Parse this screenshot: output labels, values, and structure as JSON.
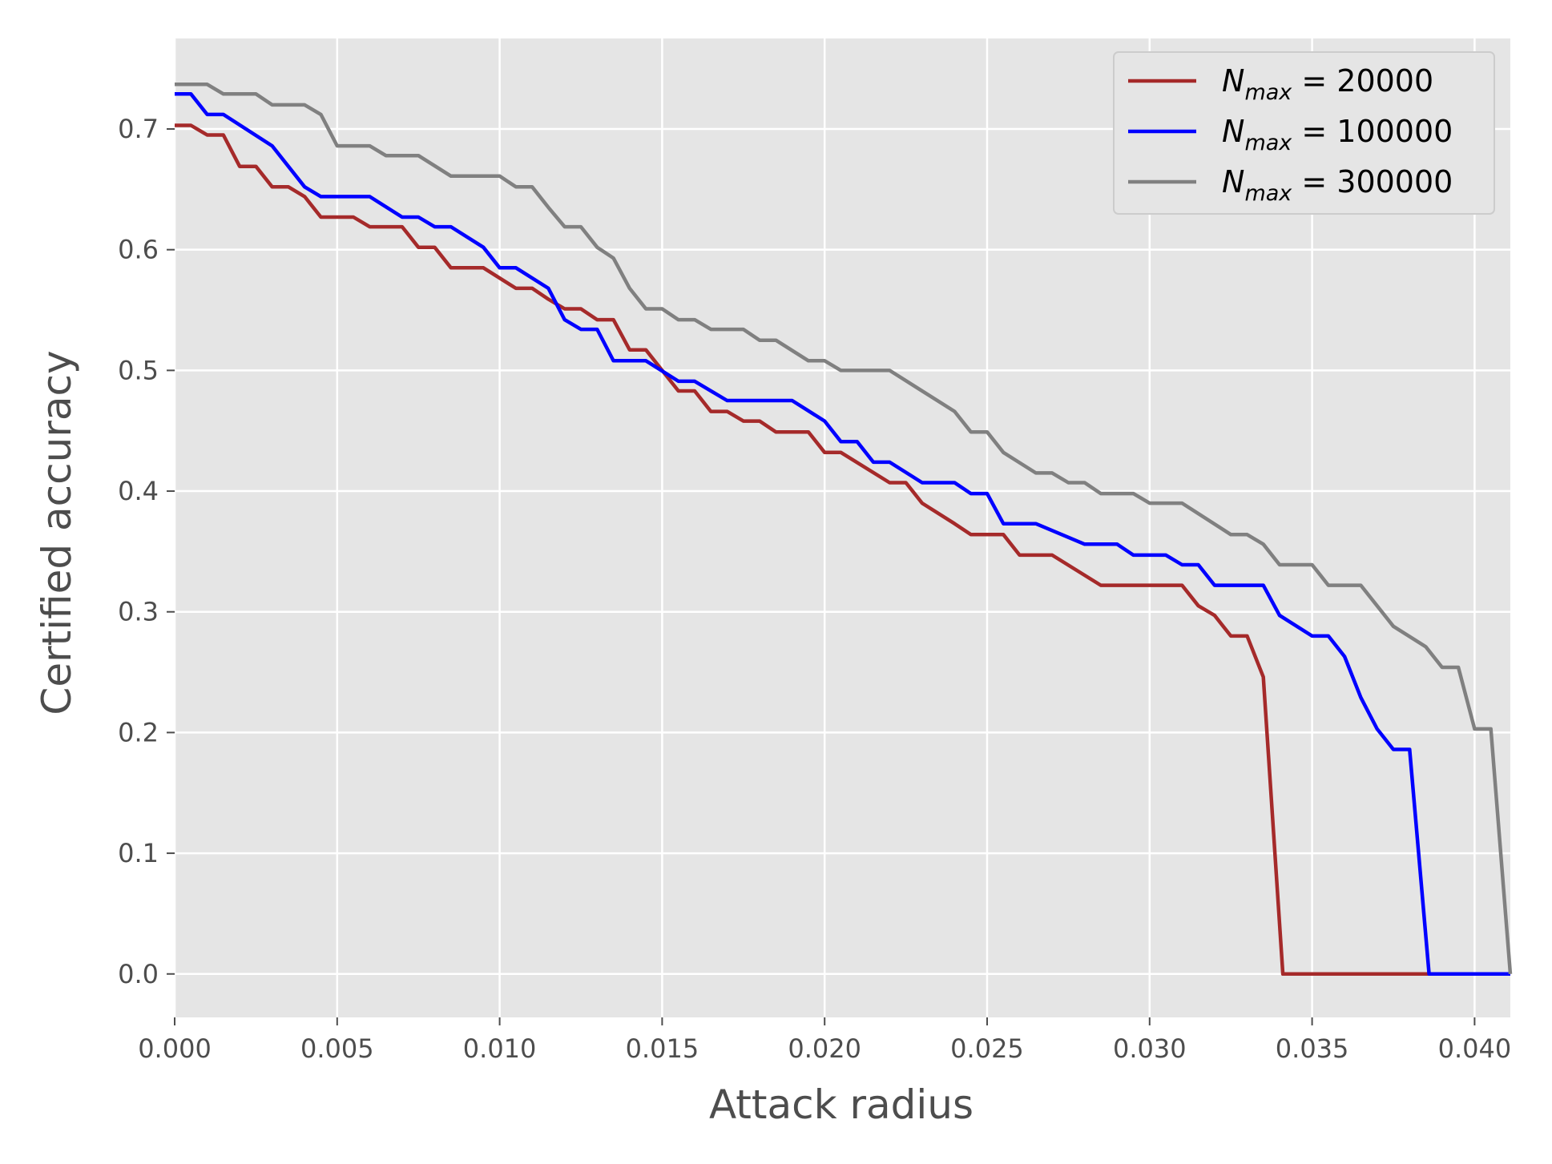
{
  "chart_data": {
    "type": "line",
    "xlabel": "Attack radius",
    "ylabel": "Certified accuracy",
    "xlim": [
      0.0,
      0.0411
    ],
    "ylim": [
      -0.036,
      0.775
    ],
    "grid": true,
    "legend_position": "top-right",
    "x_ticks": [
      "0.000",
      "0.005",
      "0.010",
      "0.015",
      "0.020",
      "0.025",
      "0.030",
      "0.035",
      "0.040"
    ],
    "y_ticks": [
      "0.0",
      "0.1",
      "0.2",
      "0.3",
      "0.4",
      "0.5",
      "0.6",
      "0.7"
    ],
    "colors": {
      "background": "#e5e5e5",
      "grid": "#ffffff",
      "tick_text": "#4d4d4d"
    },
    "series": [
      {
        "label_main": "N",
        "label_sub": "max",
        "label_value": " = 20000",
        "color": "#a52a2a",
        "points": [
          [
            0.0,
            0.703
          ],
          [
            0.0005,
            0.703
          ],
          [
            0.001,
            0.695
          ],
          [
            0.0015,
            0.695
          ],
          [
            0.002,
            0.669
          ],
          [
            0.0025,
            0.669
          ],
          [
            0.003,
            0.652
          ],
          [
            0.0035,
            0.652
          ],
          [
            0.004,
            0.644
          ],
          [
            0.0045,
            0.627
          ],
          [
            0.0055,
            0.627
          ],
          [
            0.006,
            0.619
          ],
          [
            0.007,
            0.619
          ],
          [
            0.0075,
            0.602
          ],
          [
            0.008,
            0.602
          ],
          [
            0.0085,
            0.585
          ],
          [
            0.0095,
            0.585
          ],
          [
            0.0105,
            0.568
          ],
          [
            0.011,
            0.568
          ],
          [
            0.0115,
            0.559
          ],
          [
            0.012,
            0.551
          ],
          [
            0.0125,
            0.551
          ],
          [
            0.013,
            0.542
          ],
          [
            0.0135,
            0.542
          ],
          [
            0.014,
            0.517
          ],
          [
            0.0145,
            0.517
          ],
          [
            0.0155,
            0.483
          ],
          [
            0.016,
            0.483
          ],
          [
            0.0165,
            0.466
          ],
          [
            0.017,
            0.466
          ],
          [
            0.0175,
            0.458
          ],
          [
            0.018,
            0.458
          ],
          [
            0.0185,
            0.449
          ],
          [
            0.0195,
            0.449
          ],
          [
            0.02,
            0.432
          ],
          [
            0.0205,
            0.432
          ],
          [
            0.022,
            0.407
          ],
          [
            0.0225,
            0.407
          ],
          [
            0.023,
            0.39
          ],
          [
            0.024,
            0.373
          ],
          [
            0.0245,
            0.364
          ],
          [
            0.0255,
            0.364
          ],
          [
            0.026,
            0.347
          ],
          [
            0.027,
            0.347
          ],
          [
            0.0285,
            0.322
          ],
          [
            0.031,
            0.322
          ],
          [
            0.0315,
            0.305
          ],
          [
            0.032,
            0.297
          ],
          [
            0.0325,
            0.28
          ],
          [
            0.033,
            0.28
          ],
          [
            0.0335,
            0.246
          ],
          [
            0.0341,
            0.0
          ],
          [
            0.0411,
            0.0
          ]
        ]
      },
      {
        "label_main": "N",
        "label_sub": "max",
        "label_value": " = 100000",
        "color": "#0000ff",
        "points": [
          [
            0.0,
            0.729
          ],
          [
            0.0005,
            0.729
          ],
          [
            0.001,
            0.712
          ],
          [
            0.0015,
            0.712
          ],
          [
            0.003,
            0.686
          ],
          [
            0.004,
            0.652
          ],
          [
            0.0045,
            0.644
          ],
          [
            0.006,
            0.644
          ],
          [
            0.007,
            0.627
          ],
          [
            0.0075,
            0.627
          ],
          [
            0.008,
            0.619
          ],
          [
            0.0085,
            0.619
          ],
          [
            0.0095,
            0.602
          ],
          [
            0.01,
            0.585
          ],
          [
            0.0105,
            0.585
          ],
          [
            0.0115,
            0.568
          ],
          [
            0.012,
            0.542
          ],
          [
            0.0125,
            0.534
          ],
          [
            0.013,
            0.534
          ],
          [
            0.0135,
            0.508
          ],
          [
            0.0145,
            0.508
          ],
          [
            0.0155,
            0.491
          ],
          [
            0.016,
            0.491
          ],
          [
            0.017,
            0.475
          ],
          [
            0.019,
            0.475
          ],
          [
            0.02,
            0.458
          ],
          [
            0.0205,
            0.441
          ],
          [
            0.021,
            0.441
          ],
          [
            0.0215,
            0.424
          ],
          [
            0.022,
            0.424
          ],
          [
            0.023,
            0.407
          ],
          [
            0.024,
            0.407
          ],
          [
            0.0245,
            0.398
          ],
          [
            0.025,
            0.398
          ],
          [
            0.0255,
            0.373
          ],
          [
            0.0265,
            0.373
          ],
          [
            0.028,
            0.356
          ],
          [
            0.029,
            0.356
          ],
          [
            0.0295,
            0.347
          ],
          [
            0.0305,
            0.347
          ],
          [
            0.031,
            0.339
          ],
          [
            0.0315,
            0.339
          ],
          [
            0.032,
            0.322
          ],
          [
            0.0335,
            0.322
          ],
          [
            0.034,
            0.297
          ],
          [
            0.035,
            0.28
          ],
          [
            0.0355,
            0.28
          ],
          [
            0.036,
            0.263
          ],
          [
            0.0365,
            0.229
          ],
          [
            0.037,
            0.203
          ],
          [
            0.0375,
            0.186
          ],
          [
            0.038,
            0.186
          ],
          [
            0.0386,
            0.0
          ],
          [
            0.0411,
            0.0
          ]
        ]
      },
      {
        "label_main": "N",
        "label_sub": "max",
        "label_value": " = 300000",
        "color": "#808080",
        "points": [
          [
            0.0,
            0.737
          ],
          [
            0.001,
            0.737
          ],
          [
            0.0015,
            0.729
          ],
          [
            0.0025,
            0.729
          ],
          [
            0.003,
            0.72
          ],
          [
            0.004,
            0.72
          ],
          [
            0.0045,
            0.712
          ],
          [
            0.005,
            0.686
          ],
          [
            0.006,
            0.686
          ],
          [
            0.0065,
            0.678
          ],
          [
            0.0075,
            0.678
          ],
          [
            0.0085,
            0.661
          ],
          [
            0.01,
            0.661
          ],
          [
            0.0105,
            0.652
          ],
          [
            0.011,
            0.652
          ],
          [
            0.0115,
            0.635
          ],
          [
            0.012,
            0.619
          ],
          [
            0.0125,
            0.619
          ],
          [
            0.013,
            0.602
          ],
          [
            0.0135,
            0.593
          ],
          [
            0.014,
            0.568
          ],
          [
            0.0145,
            0.551
          ],
          [
            0.015,
            0.551
          ],
          [
            0.0155,
            0.542
          ],
          [
            0.016,
            0.542
          ],
          [
            0.0165,
            0.534
          ],
          [
            0.0175,
            0.534
          ],
          [
            0.018,
            0.525
          ],
          [
            0.0185,
            0.525
          ],
          [
            0.0195,
            0.508
          ],
          [
            0.02,
            0.508
          ],
          [
            0.0205,
            0.5
          ],
          [
            0.022,
            0.5
          ],
          [
            0.024,
            0.466
          ],
          [
            0.0245,
            0.449
          ],
          [
            0.025,
            0.449
          ],
          [
            0.0255,
            0.432
          ],
          [
            0.0265,
            0.415
          ],
          [
            0.027,
            0.415
          ],
          [
            0.0275,
            0.407
          ],
          [
            0.028,
            0.407
          ],
          [
            0.0285,
            0.398
          ],
          [
            0.0295,
            0.398
          ],
          [
            0.03,
            0.39
          ],
          [
            0.031,
            0.39
          ],
          [
            0.0325,
            0.364
          ],
          [
            0.033,
            0.364
          ],
          [
            0.0335,
            0.356
          ],
          [
            0.034,
            0.339
          ],
          [
            0.035,
            0.339
          ],
          [
            0.0355,
            0.322
          ],
          [
            0.0365,
            0.322
          ],
          [
            0.0375,
            0.288
          ],
          [
            0.0385,
            0.271
          ],
          [
            0.039,
            0.254
          ],
          [
            0.0395,
            0.254
          ],
          [
            0.04,
            0.203
          ],
          [
            0.0405,
            0.203
          ],
          [
            0.0411,
            0.0
          ]
        ]
      }
    ]
  }
}
